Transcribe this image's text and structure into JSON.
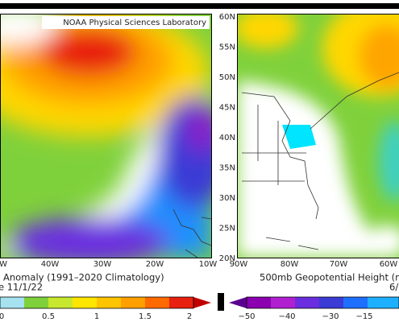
{
  "left_panel": {
    "credit": "NOAA Physical Sciences Laboratory",
    "lon_labels": [
      "W",
      "40W",
      "30W",
      "20W",
      "10W"
    ],
    "caption_lines": [
      "Anomaly (1991–2020 Climatology)",
      "e 11/1/22"
    ],
    "colorbar_labels": [
      "0",
      "0.5",
      "1",
      "1.5",
      "2"
    ]
  },
  "right_panel": {
    "lat_labels": [
      "60N",
      "55N",
      "50N",
      "45N",
      "40N",
      "35N",
      "30N",
      "25N",
      "20N"
    ],
    "lon_labels": [
      "90W",
      "80W",
      "70W",
      "60W"
    ],
    "caption_lines": [
      "500mb Geopotential Height (m",
      "6/"
    ],
    "colorbar_labels": [
      "−50",
      "−40",
      "−30",
      "−15"
    ]
  }
}
